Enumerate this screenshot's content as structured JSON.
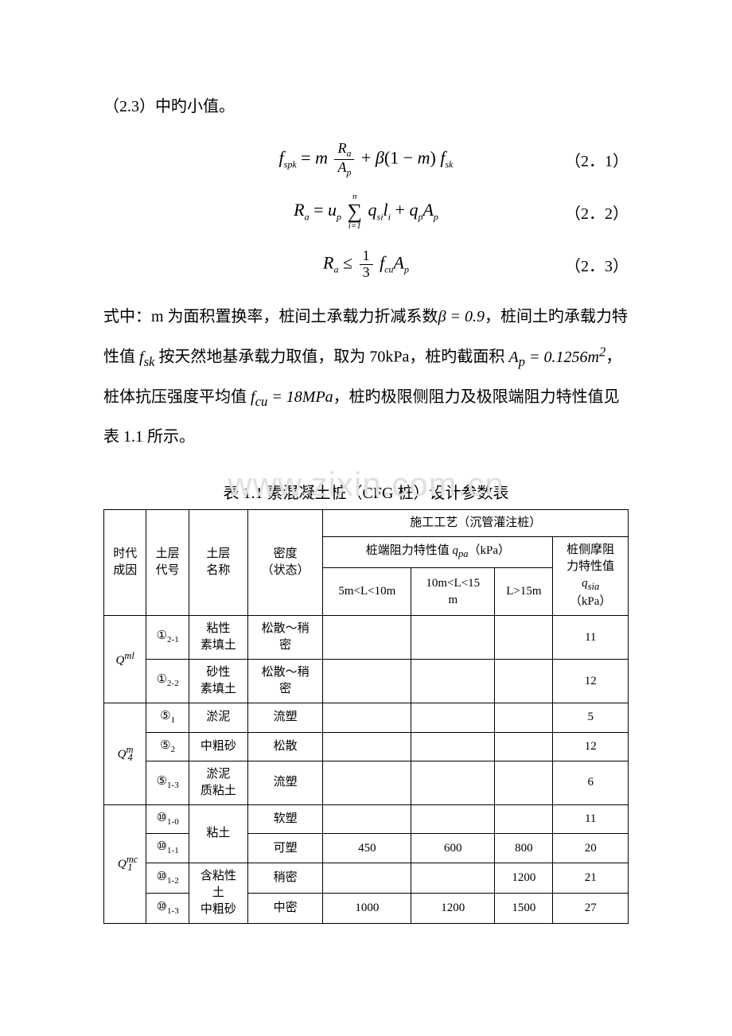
{
  "intro": "（2.3）中旳小值。",
  "eq1_num": "（2．1）",
  "eq2_num": "（2．2）",
  "eq3_num": "（2．3）",
  "para2_a": "式中：m 为面积置换率，桩间土承载力折减系数",
  "para2_beta": "β = 0.9",
  "para2_b": "，桩间土旳承载力特性值 ",
  "para2_fsk": "f",
  "para2_fsk_sub": "sk",
  "para2_c": " 按天然地基承载力取值，取为 70kPa，桩旳截面积 ",
  "para2_ap": "A",
  "para2_ap_sub": "p",
  "para2_ap_val": " = 0.1256m",
  "para2_ap_unit_sup": "2",
  "para2_d": "，桩体抗压强度平均值 ",
  "para2_fcu": "f",
  "para2_fcu_sub": "cu",
  "para2_fcu_val": " = 18MPa",
  "para2_e": "，桩旳极限侧阻力及极限端阻力特性值见表 1.1 所示。",
  "table_title": "表 1.1  素混凝土桩（CFG 桩）设计参数表",
  "watermark": "www.zixin.com.cn",
  "th_era": "时代\n成因",
  "th_code": "土层\n代号",
  "th_name": "土层\n名称",
  "th_dens": "密度\n（状态）",
  "th_craft": "施工工艺（沉管灌注桩）",
  "th_qpa": "桩端阻力特性值",
  "th_qpa_sym": "q",
  "th_qpa_sub": "pa",
  "th_kpa": "（kPa）",
  "th_qsia_a": "桩侧摩阻\n力特性值",
  "th_qsia_sym": "q",
  "th_qsia_sub": "sia",
  "th_c1": "5m<L<10m",
  "th_c2": "10m<L<15\nm",
  "th_c3": "L>15m",
  "rows": [
    {
      "era": "Q",
      "era_sup": "ml",
      "code": "①",
      "code_sub": "2-1",
      "name": "粘性\n素填土",
      "dens": "松散～稍\n密",
      "c1": "",
      "c2": "",
      "c3": "",
      "q": "11"
    },
    {
      "code": "①",
      "code_sub": "2-2",
      "name": "砂性\n素填土",
      "dens": "松散～稍\n密",
      "c1": "",
      "c2": "",
      "c3": "",
      "q": "12"
    },
    {
      "era": "Q",
      "era_sup": "m",
      "era_sub": "4",
      "code": "⑤",
      "code_sub": "1",
      "name": "淤泥",
      "dens": "流塑",
      "c1": "",
      "c2": "",
      "c3": "",
      "q": "5"
    },
    {
      "code": "⑤",
      "code_sub": "2",
      "name": "中粗砂",
      "dens": "松散",
      "c1": "",
      "c2": "",
      "c3": "",
      "q": "12"
    },
    {
      "code": "⑤",
      "code_sub": "1-3",
      "name": "淤泥\n质粘土",
      "dens": "流塑",
      "c1": "",
      "c2": "",
      "c3": "",
      "q": "6"
    },
    {
      "era": "Q",
      "era_sup": "mc",
      "era_sub": "1",
      "code": "⑩",
      "code_sub": "1-0",
      "name": "粘土",
      "dens": "软塑",
      "c1": "",
      "c2": "",
      "c3": "",
      "q": "11"
    },
    {
      "code": "⑩",
      "code_sub": "1-1",
      "dens": "可塑",
      "c1": "450",
      "c2": "600",
      "c3": "800",
      "q": "20"
    },
    {
      "code": "⑩",
      "code_sub": "1-2",
      "name": "含粘性\n土\n中粗砂",
      "dens": "稍密",
      "c1": "",
      "c2": "",
      "c3": "1200",
      "q": "21"
    },
    {
      "code": "⑩",
      "code_sub": "1-3",
      "dens": "中密",
      "c1": "1000",
      "c2": "1200",
      "c3": "1500",
      "q": "27"
    }
  ]
}
